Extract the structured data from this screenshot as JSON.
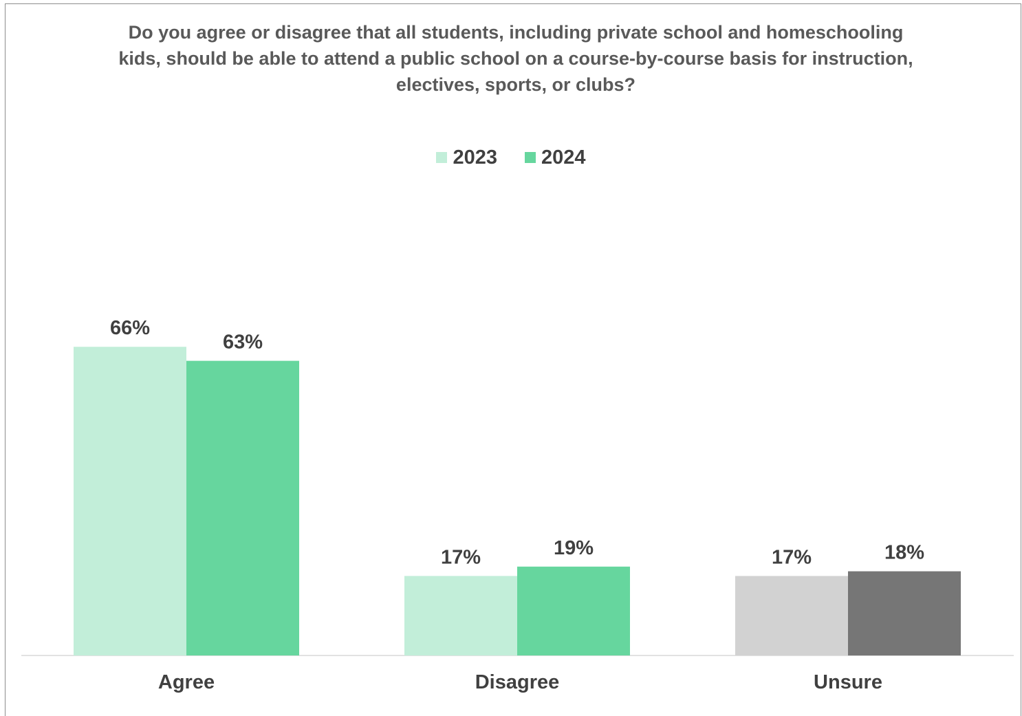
{
  "chart_data": {
    "type": "bar",
    "title_lines": [
      "Do you agree or disagree that all students, including private school and homeschooling",
      "kids, should be able to attend a public school on a course-by-course basis for instruction,",
      "electives, sports, or clubs?"
    ],
    "categories": [
      "Agree",
      "Disagree",
      "Unsure"
    ],
    "series": [
      {
        "name": "2023",
        "values": [
          66,
          17,
          17
        ],
        "labels": [
          "66%",
          "17%",
          "17%"
        ]
      },
      {
        "name": "2024",
        "values": [
          63,
          19,
          18
        ],
        "labels": [
          "63%",
          "19%",
          "18%"
        ]
      }
    ],
    "bar_colors": [
      [
        "#c2eed9",
        "#66d69e"
      ],
      [
        "#c2eed9",
        "#66d69e"
      ],
      [
        "#d2d2d2",
        "#767676"
      ]
    ],
    "legend_colors": [
      "#c2eed9",
      "#66d69e"
    ],
    "legend_position": "top",
    "ylim": [
      0,
      100
    ],
    "grid": false
  }
}
